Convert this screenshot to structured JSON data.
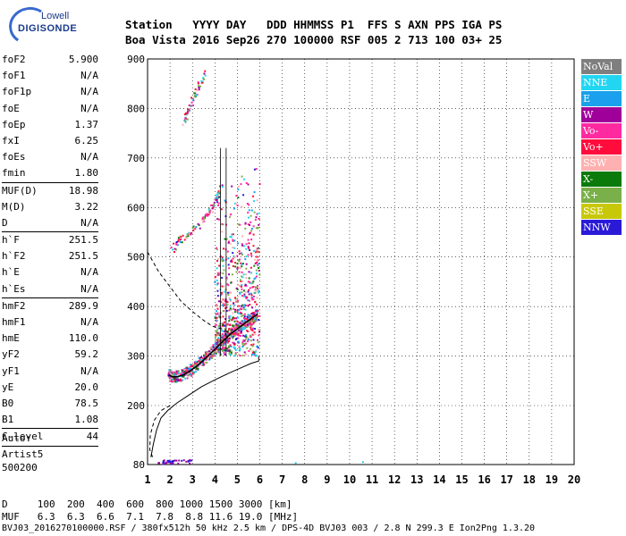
{
  "logo": {
    "line1": "Lowell",
    "line2": "DIGISONDE"
  },
  "header": {
    "line1": "Station   YYYY DAY   DDD HHMMSS P1  FFS S AXN PPS IGA PS",
    "line2": "Boa Vista 2016 Sep26 270 100000 RSF 005 2 713 100 03+ 25"
  },
  "params": [
    {
      "name": "foF2",
      "value": "5.900"
    },
    {
      "name": "foF1",
      "value": "N/A"
    },
    {
      "name": "foF1p",
      "value": "N/A"
    },
    {
      "name": "foE",
      "value": "N/A"
    },
    {
      "name": "foEp",
      "value": "1.37"
    },
    {
      "name": "fxI",
      "value": "6.25"
    },
    {
      "name": "foEs",
      "value": "N/A"
    },
    {
      "name": "fmin",
      "value": "1.80"
    },
    {
      "sep": true
    },
    {
      "name": "MUF(D)",
      "value": "18.98"
    },
    {
      "name": "M(D)",
      "value": "3.22"
    },
    {
      "name": "D",
      "value": "N/A"
    },
    {
      "sep": true
    },
    {
      "name": "h`F",
      "value": "251.5"
    },
    {
      "name": "h`F2",
      "value": "251.5"
    },
    {
      "name": "h`E",
      "value": "N/A"
    },
    {
      "name": "h`Es",
      "value": "N/A"
    },
    {
      "sep": true
    },
    {
      "name": "hmF2",
      "value": "289.9"
    },
    {
      "name": "hmF1",
      "value": "N/A"
    },
    {
      "name": "hmE",
      "value": "110.0"
    },
    {
      "name": "yF2",
      "value": "59.2"
    },
    {
      "name": "yF1",
      "value": "N/A"
    },
    {
      "name": "yE",
      "value": "20.0"
    },
    {
      "name": "B0",
      "value": "78.5"
    },
    {
      "name": "B1",
      "value": "1.08"
    },
    {
      "sep": true
    },
    {
      "name": "C-level",
      "value": "44"
    },
    {
      "sep": true
    }
  ],
  "info": {
    "line1": "Auto:",
    "line2": "Artist5",
    "line3": "500200"
  },
  "bottom": {
    "d_row": "D     100  200  400  600  800 1000 1500 3000 [km]",
    "muf_row": "MUF   6.3  6.3  6.6  7.1  7.8  8.8 11.6 19.0 [MHz]",
    "file_row": "BVJ03_2016270100000.RSF / 380fx512h 50 kHz 2.5 km / DPS-4D BVJ03 003 / 2.8 N 299.3 E Ion2Png 1.3.20"
  },
  "legend": [
    {
      "label": "NoVal",
      "color": "#7f7f7f"
    },
    {
      "label": "NNE",
      "color": "#22d6f2"
    },
    {
      "label": "E",
      "color": "#1aa0ec"
    },
    {
      "label": "W",
      "color": "#a0009a"
    },
    {
      "label": "Vo-",
      "color": "#ff2aa0"
    },
    {
      "label": "Vo+",
      "color": "#ff0c3c"
    },
    {
      "label": "SSW",
      "color": "#ffb0b0"
    },
    {
      "label": "X-",
      "color": "#0a7a0a"
    },
    {
      "label": "X+",
      "color": "#7ab04a"
    },
    {
      "label": "SSE",
      "color": "#c8c80a"
    },
    {
      "label": "NNW",
      "color": "#2a1ad8"
    }
  ],
  "chart_data": {
    "type": "scatter",
    "title": "",
    "xlabel": "",
    "ylabel": "",
    "xlim": [
      1,
      20
    ],
    "ylim": [
      80,
      900
    ],
    "x_ticks": [
      1,
      2,
      3,
      4,
      5,
      6,
      7,
      8,
      9,
      10,
      11,
      12,
      13,
      14,
      15,
      16,
      17,
      18,
      19,
      20
    ],
    "y_ticks": [
      80,
      200,
      300,
      400,
      500,
      600,
      700,
      800,
      900
    ],
    "grid": true,
    "legend_position": "right",
    "traces": [
      {
        "name": "F2 trace",
        "points": [
          [
            1.95,
            262
          ],
          [
            2.1,
            258
          ],
          [
            2.3,
            258
          ],
          [
            2.6,
            262
          ],
          [
            2.9,
            270
          ],
          [
            3.2,
            280
          ],
          [
            3.5,
            292
          ],
          [
            3.8,
            305
          ],
          [
            4.1,
            318
          ],
          [
            4.4,
            332
          ],
          [
            4.7,
            345
          ],
          [
            5.0,
            355
          ],
          [
            5.3,
            365
          ],
          [
            5.6,
            375
          ],
          [
            5.9,
            385
          ]
        ]
      },
      {
        "name": "second hop",
        "points": [
          [
            2.1,
            515
          ],
          [
            2.4,
            530
          ],
          [
            2.8,
            545
          ],
          [
            3.2,
            560
          ],
          [
            3.6,
            578
          ],
          [
            3.9,
            600
          ],
          [
            4.1,
            620
          ],
          [
            4.3,
            645
          ]
        ]
      },
      {
        "name": "third hop",
        "points": [
          [
            2.6,
            770
          ],
          [
            2.8,
            790
          ],
          [
            3.0,
            815
          ],
          [
            3.3,
            845
          ],
          [
            3.6,
            870
          ]
        ]
      }
    ],
    "profile_solid": [
      [
        1.15,
        95
      ],
      [
        1.25,
        120
      ],
      [
        1.4,
        150
      ],
      [
        1.6,
        175
      ],
      [
        1.9,
        190
      ],
      [
        2.3,
        205
      ],
      [
        2.8,
        220
      ],
      [
        3.4,
        238
      ],
      [
        4.0,
        252
      ],
      [
        4.6,
        265
      ],
      [
        5.1,
        275
      ],
      [
        5.6,
        285
      ],
      [
        5.95,
        290
      ],
      [
        5.95,
        300
      ]
    ],
    "profile_dashed": [
      [
        1.0,
        510
      ],
      [
        1.5,
        470
      ],
      [
        2.0,
        440
      ],
      [
        2.5,
        410
      ],
      [
        3.0,
        390
      ],
      [
        3.5,
        372
      ],
      [
        3.9,
        360
      ],
      [
        4.3,
        355
      ],
      [
        4.6,
        348
      ],
      [
        1.25,
        180
      ],
      [
        1.1,
        140
      ],
      [
        1.1,
        110
      ],
      [
        1.3,
        90
      ]
    ]
  }
}
